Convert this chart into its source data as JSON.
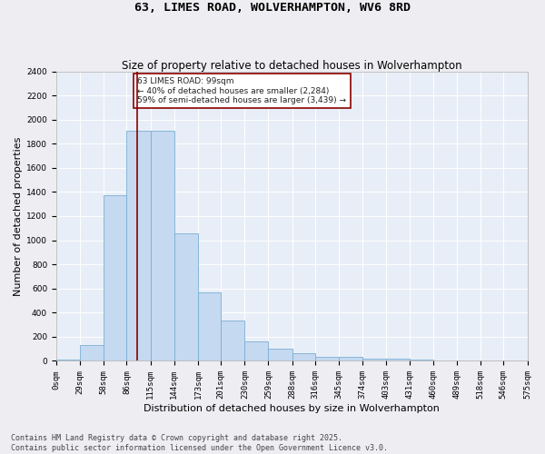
{
  "title_line1": "63, LIMES ROAD, WOLVERHAMPTON, WV6 8RD",
  "title_line2": "Size of property relative to detached houses in Wolverhampton",
  "xlabel": "Distribution of detached houses by size in Wolverhampton",
  "ylabel": "Number of detached properties",
  "bar_color": "#c5d9f0",
  "bar_edge_color": "#7bafd4",
  "background_color": "#e8eef7",
  "grid_color": "#ffffff",
  "vline_x": 99,
  "vline_color": "#8b0000",
  "annotation_text": "63 LIMES ROAD: 99sqm\n← 40% of detached houses are smaller (2,284)\n59% of semi-detached houses are larger (3,439) →",
  "annotation_box_color": "#8b0000",
  "bins": [
    0,
    29,
    58,
    86,
    115,
    144,
    173,
    201,
    230,
    259,
    288,
    316,
    345,
    374,
    403,
    431,
    460,
    489,
    518,
    546,
    575
  ],
  "counts": [
    10,
    135,
    1370,
    1910,
    1910,
    1060,
    565,
    335,
    165,
    105,
    60,
    35,
    30,
    20,
    15,
    8,
    5,
    5,
    3,
    3,
    10
  ],
  "ylim": [
    0,
    2400
  ],
  "yticks": [
    0,
    200,
    400,
    600,
    800,
    1000,
    1200,
    1400,
    1600,
    1800,
    2000,
    2200,
    2400
  ],
  "tick_labels": [
    "0sqm",
    "29sqm",
    "58sqm",
    "86sqm",
    "115sqm",
    "144sqm",
    "173sqm",
    "201sqm",
    "230sqm",
    "259sqm",
    "288sqm",
    "316sqm",
    "345sqm",
    "374sqm",
    "403sqm",
    "431sqm",
    "460sqm",
    "489sqm",
    "518sqm",
    "546sqm",
    "575sqm"
  ],
  "footer": "Contains HM Land Registry data © Crown copyright and database right 2025.\nContains public sector information licensed under the Open Government Licence v3.0.",
  "title_fontsize": 9.5,
  "subtitle_fontsize": 8.5,
  "axis_label_fontsize": 8,
  "tick_fontsize": 6.5,
  "footer_fontsize": 6,
  "fig_width": 6.0,
  "fig_height": 5.0,
  "fig_dpi": 100
}
